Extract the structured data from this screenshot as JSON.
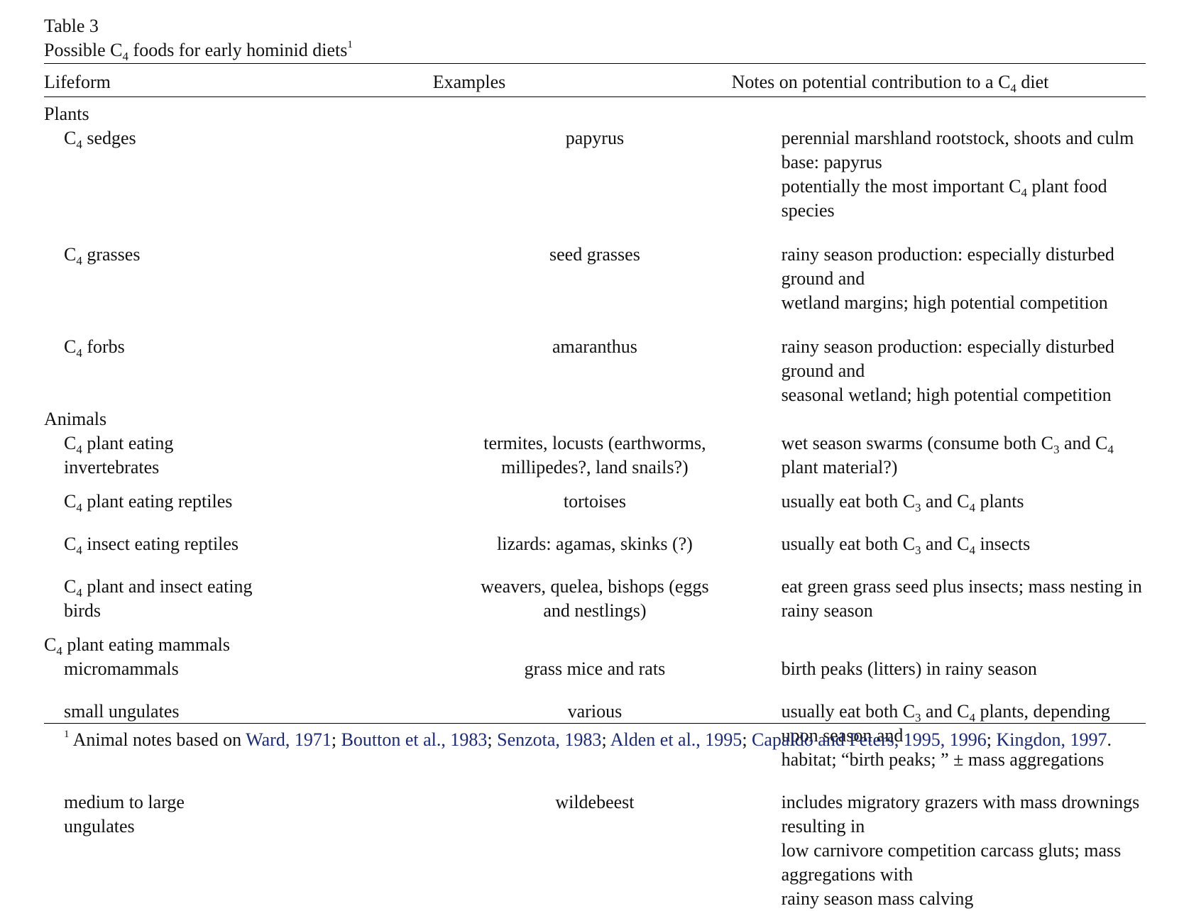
{
  "caption": {
    "table_label": "Table 3",
    "title_parts": [
      "Possible C",
      "4",
      " foods for early hominid diets",
      "1"
    ]
  },
  "headers": {
    "lifeform": "Lifeform",
    "examples": "Examples",
    "notes_parts": [
      "Notes on potential contribution to a C",
      "4",
      " diet"
    ]
  },
  "groups": [
    {
      "name_parts": [
        "Plants"
      ],
      "rows": [
        {
          "lifeform_parts": [
            "C",
            "4",
            " sedges"
          ],
          "examples_lines": [
            "papyrus"
          ],
          "notes_lines": [
            [
              "perennial marshland rootstock, shoots and culm base: papyrus"
            ],
            [
              "potentially the most important C",
              "4",
              " plant food species"
            ]
          ]
        },
        {
          "lifeform_parts": [
            "C",
            "4",
            " grasses"
          ],
          "examples_lines": [
            "seed grasses"
          ],
          "notes_lines": [
            [
              "rainy season production: especially disturbed ground and"
            ],
            [
              "wetland margins; high potential competition"
            ]
          ]
        },
        {
          "lifeform_parts": [
            "C",
            "4",
            " forbs"
          ],
          "examples_lines": [
            "amaranthus"
          ],
          "notes_lines": [
            [
              "rainy season production: especially disturbed ground and"
            ],
            [
              "seasonal wetland; high potential competition"
            ]
          ]
        }
      ]
    },
    {
      "name_parts": [
        "Animals"
      ],
      "rows": [
        {
          "lifeform_lines": [
            [
              "C",
              "4",
              " plant eating"
            ],
            [
              "invertebrates"
            ]
          ],
          "examples_lines": [
            "termites, locusts (earthworms,",
            "millipedes?, land snails?)"
          ],
          "notes_lines": [
            [
              "wet season swarms (consume both C",
              "3",
              " and C",
              "4",
              " plant material?)"
            ]
          ]
        },
        {
          "lifeform_parts": [
            "C",
            "4",
            " plant eating reptiles"
          ],
          "examples_lines": [
            "tortoises"
          ],
          "notes_lines": [
            [
              "usually eat both C",
              "3",
              " and C",
              "4",
              " plants"
            ]
          ]
        },
        {
          "lifeform_parts": [
            "C",
            "4",
            " insect eating reptiles"
          ],
          "examples_lines": [
            "lizards: agamas, skinks (?)"
          ],
          "notes_lines": [
            [
              "usually eat both C",
              "3",
              " and C",
              "4",
              " insects"
            ]
          ]
        },
        {
          "lifeform_lines": [
            [
              "C",
              "4",
              " plant and insect eating"
            ],
            [
              "birds"
            ]
          ],
          "examples_lines": [
            "weavers, quelea, bishops (eggs",
            "and nestlings)"
          ],
          "notes_lines": [
            [
              "eat green grass seed plus insects; mass nesting in rainy season"
            ]
          ]
        }
      ]
    },
    {
      "name_parts": [
        "C",
        "4",
        " plant eating mammals"
      ],
      "rows": [
        {
          "lifeform_parts": [
            "micromammals"
          ],
          "examples_lines": [
            "grass mice and rats"
          ],
          "notes_lines": [
            [
              "birth peaks (litters) in rainy season"
            ]
          ]
        },
        {
          "lifeform_parts": [
            "small ungulates"
          ],
          "examples_lines": [
            "various"
          ],
          "notes_lines": [
            [
              "usually eat both C",
              "3",
              " and C",
              "4",
              " plants, depending upon season and"
            ],
            [
              "habitat; “birth peaks; ” ± mass aggregations"
            ]
          ]
        },
        {
          "lifeform_lines": [
            [
              "medium to large"
            ],
            [
              "ungulates"
            ]
          ],
          "examples_lines": [
            "wildebeest"
          ],
          "notes_lines": [
            [
              "includes migratory grazers with mass drownings resulting in"
            ],
            [
              "low carnivore competition carcass gluts; mass aggregations with"
            ],
            [
              "rainy season mass calving"
            ]
          ]
        }
      ]
    }
  ],
  "footnote": {
    "marker": "1",
    "intro": " Animal notes based on ",
    "citations": [
      "Ward, 1971",
      "Boutton et al., 1983",
      "Senzota, 1983",
      "Alden et al., 1995",
      "Capaldo and Peters, 1995, 1996",
      "Kingdon, 1997"
    ],
    "separator": "; ",
    "end": "."
  }
}
